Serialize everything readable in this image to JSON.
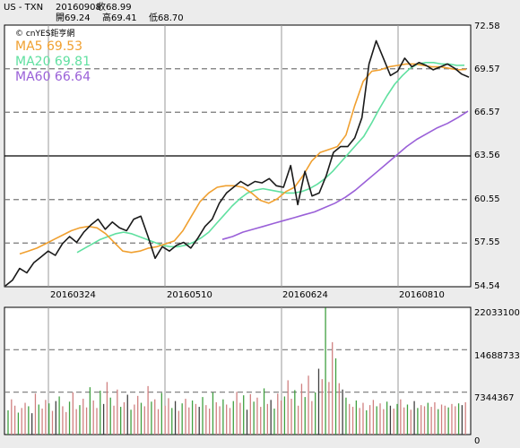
{
  "header": {
    "symbol": "US - TXN",
    "date": "20160908",
    "close_label": "收68.99",
    "open_label": "開69.24",
    "high_label": "高69.41",
    "low_label": "低68.70"
  },
  "legend": {
    "watermark": "© cnYES鉅亨網",
    "ma5": "MA5 69.53",
    "ma20": "MA20 69.81",
    "ma60": "MA60 66.64"
  },
  "colors": {
    "price": "#1a1a1a",
    "ma5": "#f0a030",
    "ma20": "#60e0a0",
    "ma60": "#9a60d8",
    "vol_up": "#d08080",
    "vol_down": "#40a040",
    "vol_flat": "#404040"
  },
  "chart_data": [
    {
      "type": "line",
      "title": "",
      "x_tick_labels": [
        "20160324",
        "20160510",
        "20160624",
        "20160810"
      ],
      "y_tick_labels": [
        "72.58",
        "69.57",
        "66.57",
        "63.56",
        "60.55",
        "57.55",
        "54.54"
      ],
      "ylim": [
        54.54,
        72.58
      ],
      "grid": true,
      "legend_position": "top-left",
      "series": [
        {
          "name": "MA5 69.53",
          "values": [
            56.8,
            57.0,
            57.2,
            57.5,
            57.8,
            58.1,
            58.4,
            58.6,
            58.7,
            58.6,
            58.2,
            57.6,
            57.0,
            56.9,
            57.0,
            57.2,
            57.3,
            57.5,
            57.7,
            58.4,
            59.4,
            60.4,
            61.0,
            61.4,
            61.5,
            61.5,
            61.4,
            61.0,
            60.5,
            60.3,
            60.6,
            61.1,
            61.4,
            62.2,
            63.2,
            63.8,
            64.0,
            64.2,
            65.0,
            67.0,
            68.7,
            69.4,
            69.5,
            69.7,
            69.8,
            69.9,
            69.9,
            69.8,
            69.7,
            69.7,
            69.6,
            69.5,
            69.53
          ]
        },
        {
          "name": "MA20 69.81",
          "values": [
            56.9,
            57.2,
            57.5,
            57.8,
            58.0,
            58.2,
            58.3,
            58.2,
            58.0,
            57.8,
            57.6,
            57.4,
            57.3,
            57.3,
            57.4,
            57.6,
            57.9,
            58.3,
            58.9,
            59.5,
            60.1,
            60.6,
            61.0,
            61.2,
            61.3,
            61.2,
            61.1,
            61.0,
            61.0,
            61.1,
            61.3,
            61.6,
            62.0,
            62.5,
            63.1,
            63.7,
            64.3,
            64.9,
            65.8,
            66.8,
            67.7,
            68.5,
            69.1,
            69.6,
            69.9,
            70.0,
            70.0,
            69.9,
            69.9,
            69.8,
            69.81
          ]
        },
        {
          "name": "MA60 66.64",
          "values": [
            57.8,
            58.0,
            58.3,
            58.5,
            58.7,
            58.9,
            59.1,
            59.3,
            59.5,
            59.7,
            60.0,
            60.3,
            60.7,
            61.2,
            61.8,
            62.4,
            63.0,
            63.6,
            64.2,
            64.7,
            65.1,
            65.5,
            65.8,
            66.2,
            66.64
          ]
        }
      ],
      "price_closes": [
        54.6,
        55.0,
        55.8,
        55.5,
        56.2,
        56.6,
        57.0,
        56.7,
        57.5,
        58.0,
        57.6,
        58.3,
        58.8,
        59.2,
        58.5,
        59.0,
        58.6,
        58.4,
        59.2,
        59.4,
        58.0,
        56.5,
        57.3,
        57.0,
        57.4,
        57.6,
        57.2,
        57.9,
        58.7,
        59.2,
        60.3,
        61.0,
        61.4,
        61.8,
        61.5,
        61.8,
        61.7,
        62.0,
        61.5,
        61.4,
        62.9,
        60.2,
        62.5,
        60.8,
        61.0,
        62.2,
        63.8,
        64.2,
        64.2,
        64.8,
        66.2,
        69.9,
        71.5,
        70.3,
        69.1,
        69.4,
        70.3,
        69.7,
        70.0,
        69.8,
        69.5,
        69.7,
        69.9,
        69.6,
        69.2,
        68.99
      ]
    },
    {
      "type": "bar",
      "title": "",
      "y_tick_labels": [
        "22033100",
        "14688733",
        "7344367",
        "0"
      ],
      "ylim": [
        0,
        22033100
      ],
      "grid": true,
      "values": [
        4.2,
        6.1,
        5.0,
        3.8,
        4.6,
        5.5,
        4.9,
        3.7,
        7.1,
        5.2,
        4.5,
        6.0,
        5.4,
        4.1,
        5.8,
        6.6,
        4.9,
        3.9,
        5.7,
        7.3,
        4.4,
        5.1,
        6.2,
        4.7,
        8.2,
        5.9,
        4.6,
        7.6,
        5.3,
        9.1,
        6.4,
        5.0,
        7.8,
        4.8,
        5.6,
        6.9,
        4.3,
        5.2,
        6.7,
        5.5,
        4.9,
        8.4,
        5.7,
        6.1,
        4.4,
        7.2,
        5.0,
        6.3,
        4.6,
        5.8,
        4.1,
        5.4,
        6.2,
        4.7,
        5.9,
        5.3,
        4.8,
        6.5,
        5.1,
        4.5,
        7.3,
        5.6,
        4.9,
        6.1,
        5.2,
        4.6,
        5.8,
        7.4,
        5.5,
        6.8,
        4.3,
        7.0,
        5.7,
        6.4,
        4.8,
        8.0,
        5.3,
        6.0,
        4.5,
        7.1,
        5.9,
        6.6,
        9.4,
        6.2,
        7.7,
        5.0,
        8.8,
        6.5,
        10.2,
        5.8,
        7.3,
        11.4,
        9.6,
        22.0,
        9.1,
        16.0,
        13.2,
        8.9,
        7.8,
        6.4,
        5.3,
        4.8,
        5.9,
        4.6,
        5.5,
        4.2,
        5.1,
        6.0,
        4.9,
        5.4,
        4.4,
        5.7,
        5.0,
        4.5,
        5.3,
        6.1,
        4.7,
        5.2,
        4.3,
        5.8,
        4.6,
        5.1,
        4.9,
        5.5,
        4.8,
        5.6,
        4.4,
        5.2,
        5.0,
        4.7,
        5.3,
        4.9,
        5.4,
        5.1,
        5.6
      ]
    }
  ]
}
